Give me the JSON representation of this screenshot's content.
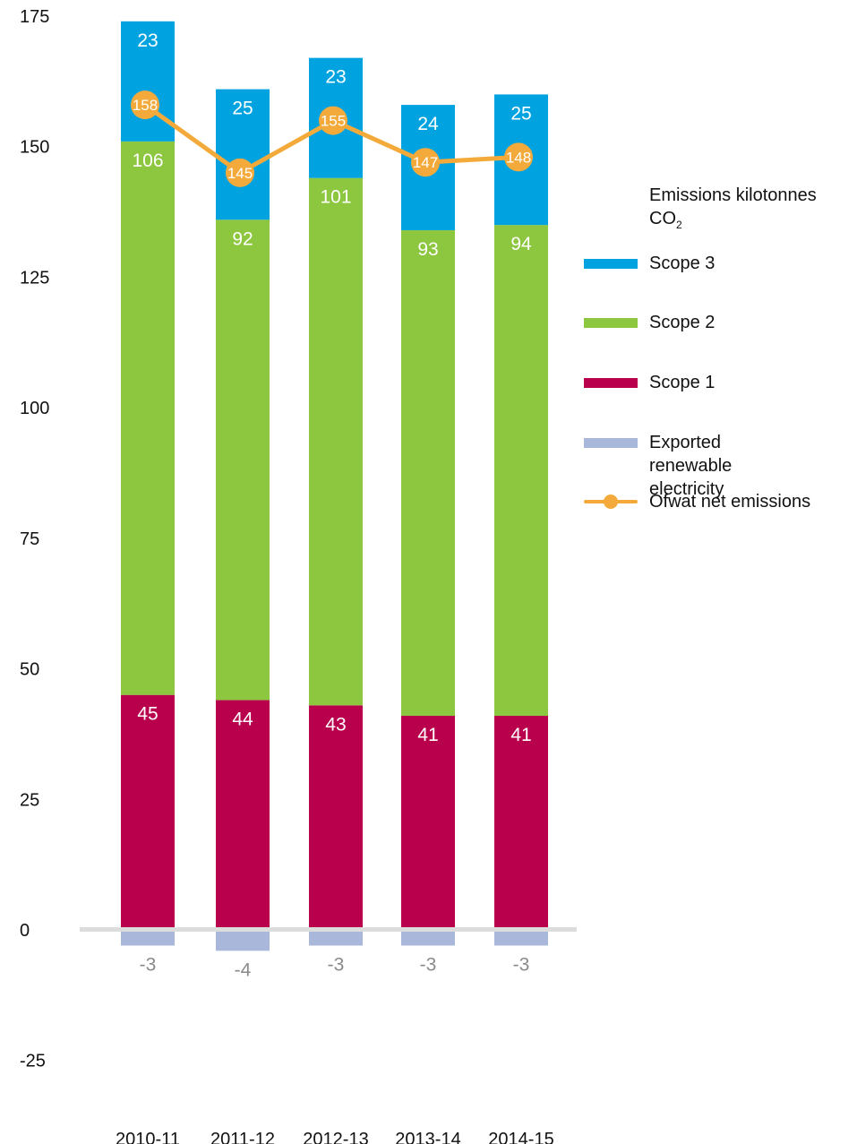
{
  "chart_data": {
    "type": "bar",
    "stacked": true,
    "categories": [
      "2010-11",
      "2011-12",
      "2012-13",
      "2013-14",
      "2014-15"
    ],
    "ylim": [
      -25,
      175
    ],
    "yticks": [
      "175",
      "150",
      "125",
      "100",
      "75",
      "50",
      "25",
      "0",
      "-25"
    ],
    "ytick_values": [
      175,
      150,
      125,
      100,
      75,
      50,
      25,
      0,
      -25
    ],
    "legend_title": "Emissions kilotonnes CO",
    "legend_title_sub": "2",
    "legend_position": "right",
    "series": [
      {
        "name": "Scope 1",
        "color": "#b8004d",
        "values": [
          45,
          44,
          43,
          41,
          41
        ],
        "labels": [
          "45",
          "44",
          "43",
          "41",
          "41"
        ]
      },
      {
        "name": "Scope 2",
        "color": "#8dc63f",
        "values": [
          106,
          92,
          101,
          93,
          94
        ],
        "labels": [
          "106",
          "92",
          "101",
          "93",
          "94"
        ]
      },
      {
        "name": "Scope 3",
        "color": "#00a3e0",
        "values": [
          23,
          25,
          23,
          24,
          25
        ],
        "labels": [
          "23",
          "25",
          "23",
          "24",
          "25"
        ]
      },
      {
        "name": "Exported renewable electricity",
        "color": "#a9b7da",
        "values": [
          -3,
          -4,
          -3,
          -3,
          -3
        ],
        "labels": [
          "-3",
          "-4",
          "-3",
          "-3",
          "-3"
        ]
      }
    ],
    "line_series": {
      "name": "Ofwat net emissions",
      "color": "#f4aa3b",
      "values": [
        158,
        145,
        155,
        147,
        148
      ],
      "labels": [
        "158",
        "145",
        "155",
        "147",
        "148"
      ]
    }
  },
  "legend": {
    "scope3": "Scope 3",
    "scope2": "Scope 2",
    "scope1": "Scope 1",
    "exported": "Exported renewable electricity",
    "net": "Ofwat net emissions"
  }
}
